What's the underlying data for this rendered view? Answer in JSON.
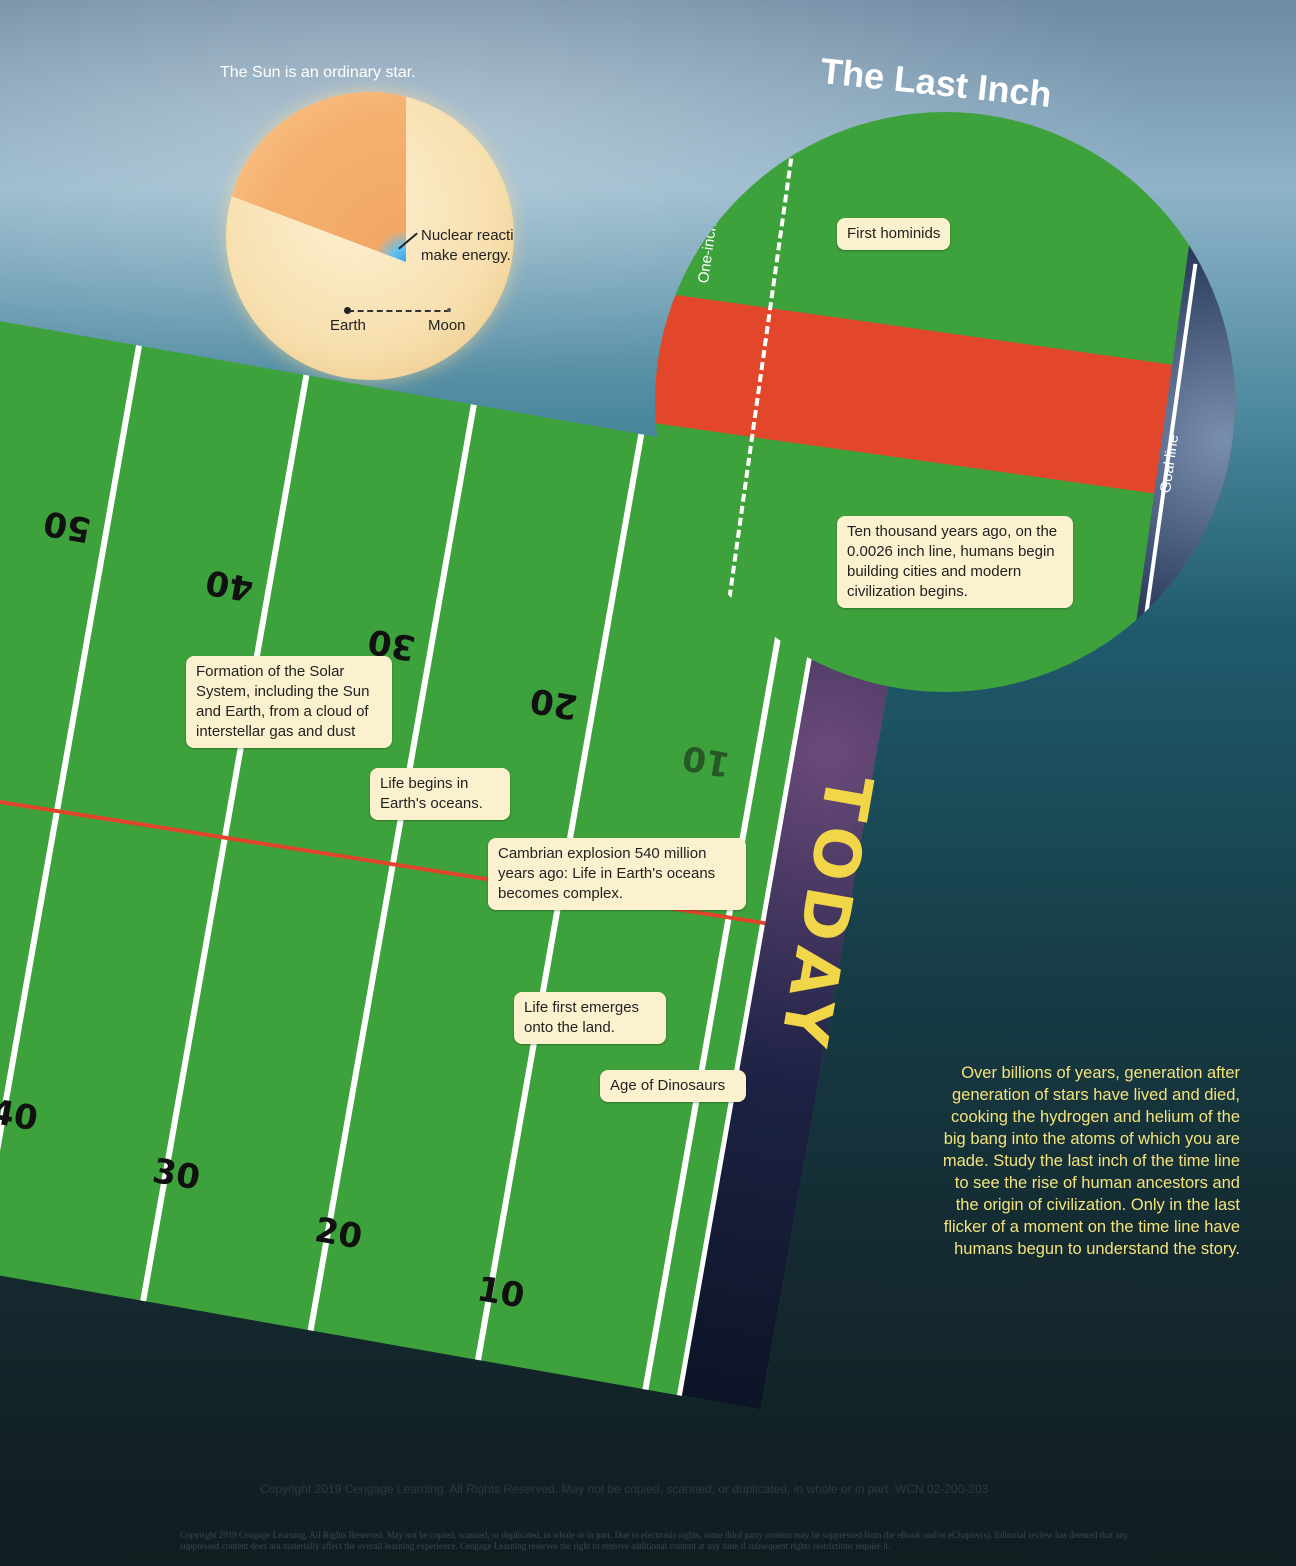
{
  "sun": {
    "caption": "The Sun is an ordinary star.",
    "label_nuclear": "Nuclear reactions make energy.",
    "label_earth": "Earth",
    "label_moon": "Moon"
  },
  "last_inch": {
    "title": "The Last Inch",
    "one_inch_line": "One-inch line",
    "goal_line": "Goal line",
    "first_hominids": "First hominids",
    "ten_thousand": "Ten thousand years ago, on the 0.0026 inch line, humans begin building cities and modern civilization begins."
  },
  "field": {
    "top_numbers": [
      "50",
      "40",
      "30",
      "20",
      "10"
    ],
    "bottom_numbers": [
      "40",
      "30",
      "20",
      "10"
    ],
    "today": "TODAY",
    "callouts": {
      "formation": "Formation of the Solar System, including the Sun and Earth, from a cloud of interstellar gas and dust",
      "life_begins": "Life begins in Earth's oceans.",
      "cambrian": "Cambrian explosion 540 million years ago: Life in Earth's oceans becomes complex.",
      "land": "Life first emerges onto the land.",
      "dinosaurs": "Age of Dinosaurs"
    }
  },
  "side_text": "Over billions of years, generation after generation of stars have lived and died, cooking the hydrogen and helium of the big bang into the atoms of which you are made. Study the last inch of the time line to see the rise of human ancestors and the origin of civilization. Only in the last flicker of a moment on the time line have humans begun to understand the story.",
  "copyright": {
    "line1": "Copyright 2019 Cengage Learning. All Rights Reserved. May not be copied, scanned, or duplicated, in whole or in part. WCN 02-200-203",
    "line2": "Copyright 2019 Cengage Learning. All Rights Reserved. May not be copied, scanned, or duplicated, in whole or in part. Due to electronic rights, some third party content may be suppressed from the eBook and/or eChapter(s). Editorial review has deemed that any suppressed content does not materially affect the overall learning experience. Cengage Learning reserves the right to remove additional content at any time if subsequent rights restrictions require it."
  }
}
